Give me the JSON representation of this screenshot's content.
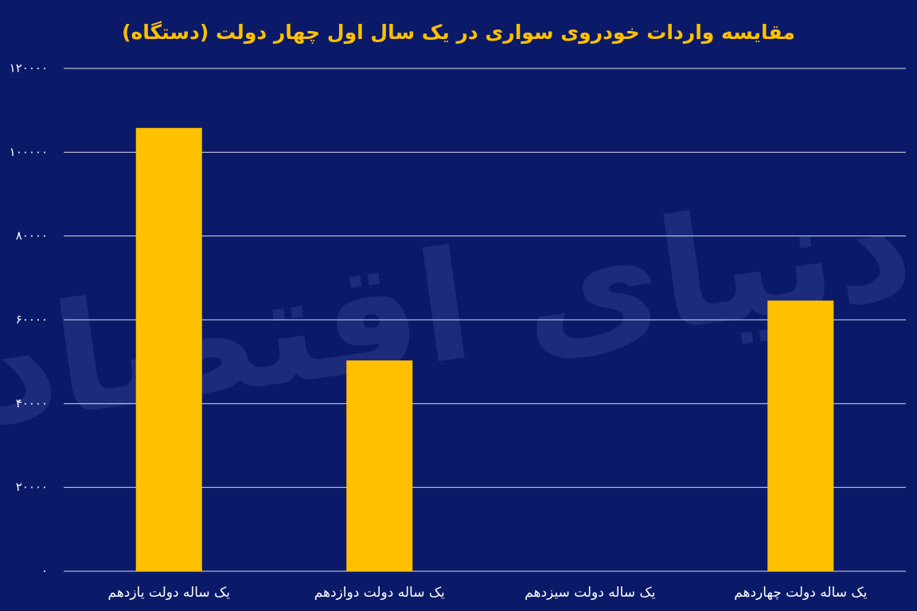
{
  "chart_data": {
    "type": "bar",
    "title": "مقایسه واردات خودروی سواری در یک سال اول چهار دولت (دستگاه)",
    "watermark": "دنیای اقتصاد",
    "categories": [
      "یک ساله دولت یازدهم",
      "یک ساله دولت دوازدهم",
      "یک ساله دولت سیزدهم",
      "یک ساله دولت چهاردهم"
    ],
    "values": [
      105800,
      50300,
      0,
      64600
    ],
    "color": "#ffc000",
    "ylim": [
      0,
      120000
    ],
    "yticks": [
      {
        "value": 0,
        "label": "۰"
      },
      {
        "value": 20000,
        "label": "۲۰۰۰۰"
      },
      {
        "value": 40000,
        "label": "۴۰۰۰۰"
      },
      {
        "value": 60000,
        "label": "۶۰۰۰۰"
      },
      {
        "value": 80000,
        "label": "۸۰۰۰۰"
      },
      {
        "value": 100000,
        "label": "۱۰۰۰۰۰"
      },
      {
        "value": 120000,
        "label": "۱۲۰۰۰۰"
      }
    ],
    "grid": true
  }
}
